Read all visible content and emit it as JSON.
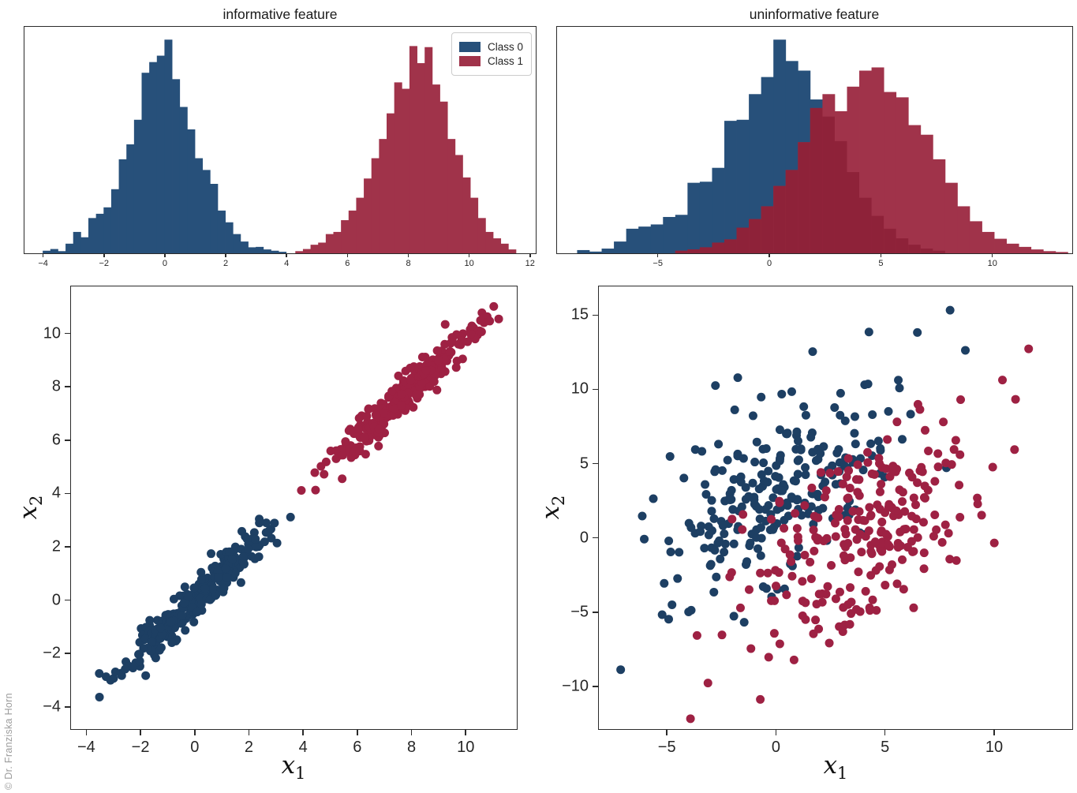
{
  "watermark": "© Dr. Franziska Horn",
  "colors": {
    "class0": "#27507a",
    "class1": "#a0334a",
    "class0_scatter": "#1d3f63",
    "class1_scatter": "#9e2143",
    "hist_overlap": "#8e2239",
    "axis": "#2b2b2b",
    "watermark_gray": "#9c9c9c"
  },
  "chart_data": [
    {
      "type": "bar",
      "subtype": "histogram",
      "title": "informative feature",
      "xlim": [
        -4.6,
        12.2
      ],
      "ylim": [
        0,
        1.06
      ],
      "xticks": [
        -4,
        -2,
        0,
        2,
        4,
        6,
        8,
        10,
        12
      ],
      "yticks": [],
      "grid": false,
      "legend": [
        {
          "label": "Class 0",
          "color": "#27507a"
        },
        {
          "label": "Class 1",
          "color": "#a0334a"
        }
      ],
      "legend_position": "upper right",
      "series": [
        {
          "name": "Class 0",
          "color": "#27507a",
          "bin_start": -4.0,
          "bin_width": 0.25,
          "heights": [
            0.012,
            0.02,
            0.01,
            0.045,
            0.1,
            0.075,
            0.165,
            0.185,
            0.215,
            0.3,
            0.44,
            0.51,
            0.625,
            0.845,
            0.895,
            0.925,
            1.0,
            0.815,
            0.685,
            0.58,
            0.445,
            0.39,
            0.325,
            0.2,
            0.145,
            0.09,
            0.055,
            0.028,
            0.03,
            0.018,
            0.012,
            0.007
          ]
        },
        {
          "name": "Class 1",
          "color": "#a0334a",
          "bin_start": 4.3,
          "bin_width": 0.25,
          "heights": [
            0.01,
            0.02,
            0.04,
            0.05,
            0.09,
            0.1,
            0.155,
            0.2,
            0.26,
            0.35,
            0.445,
            0.535,
            0.655,
            0.8,
            0.77,
            0.97,
            0.89,
            0.965,
            0.79,
            0.71,
            0.535,
            0.46,
            0.355,
            0.26,
            0.165,
            0.1,
            0.07,
            0.045,
            0.018
          ]
        }
      ]
    },
    {
      "type": "bar",
      "subtype": "histogram",
      "title": "uninformative feature",
      "xlim": [
        -9.5,
        13.6
      ],
      "ylim": [
        0,
        1.06
      ],
      "xticks": [
        -5,
        0,
        5,
        10
      ],
      "yticks": [],
      "grid": false,
      "overlap_color": "#8e2239",
      "series": [
        {
          "name": "Class 0",
          "color": "#27507a",
          "bin_start": -8.6,
          "bin_width": 0.55,
          "heights": [
            0.015,
            0.008,
            0.022,
            0.055,
            0.115,
            0.125,
            0.135,
            0.17,
            0.18,
            0.33,
            0.335,
            0.4,
            0.62,
            0.625,
            0.745,
            0.825,
            1.0,
            0.9,
            0.855,
            0.72,
            0.64,
            0.525,
            0.38,
            0.26,
            0.175,
            0.115,
            0.07,
            0.04,
            0.022,
            0.012
          ]
        },
        {
          "name": "Class 1",
          "color": "#a0334a",
          "bin_start": -4.2,
          "bin_width": 0.55,
          "heights": [
            0.012,
            0.018,
            0.028,
            0.05,
            0.065,
            0.12,
            0.16,
            0.22,
            0.315,
            0.39,
            0.52,
            0.68,
            0.745,
            0.665,
            0.78,
            0.855,
            0.87,
            0.755,
            0.73,
            0.6,
            0.555,
            0.44,
            0.33,
            0.22,
            0.15,
            0.1,
            0.068,
            0.045,
            0.03,
            0.018,
            0.01,
            0.006
          ]
        }
      ]
    },
    {
      "type": "scatter",
      "title": "",
      "xlabel": {
        "base": "x",
        "sub": "1"
      },
      "ylabel": {
        "base": "x",
        "sub": "2"
      },
      "xlim": [
        -4.55,
        11.9
      ],
      "ylim": [
        -4.85,
        11.75
      ],
      "xticks": [
        -4,
        -2,
        0,
        2,
        4,
        6,
        8,
        10
      ],
      "yticks": [
        -4,
        -2,
        0,
        2,
        4,
        6,
        8,
        10
      ],
      "grid": false,
      "marker_radius": 5.5,
      "clusters": [
        {
          "name": "Class 0",
          "color": "#1d3f63",
          "n": 280,
          "mean": [
            0.1,
            0.05
          ],
          "std": [
            1.35,
            1.35
          ],
          "corr": 0.96,
          "clip": [
            -3.65,
            3.65,
            -3.8,
            3.25
          ],
          "seed": 11,
          "extra": [
            [
              -3.5,
              -3.65
            ],
            [
              -2.55,
              -2.6
            ],
            [
              3.55,
              3.1
            ]
          ]
        },
        {
          "name": "Class 1",
          "color": "#9e2143",
          "n": 280,
          "mean": [
            7.55,
            7.45
          ],
          "std": [
            1.35,
            1.35
          ],
          "corr": 0.96,
          "clip": [
            3.85,
            11.3,
            4.0,
            11.2
          ],
          "seed": 23,
          "extra": [
            [
              11.05,
              11.0
            ],
            [
              3.95,
              4.1
            ],
            [
              10.6,
              10.05
            ],
            [
              10.9,
              10.45
            ]
          ]
        }
      ]
    },
    {
      "type": "scatter",
      "title": "",
      "xlabel": {
        "base": "x",
        "sub": "1"
      },
      "ylabel": {
        "base": "x",
        "sub": "2"
      },
      "xlim": [
        -8.1,
        13.6
      ],
      "ylim": [
        -12.9,
        16.9
      ],
      "xticks": [
        -5,
        0,
        5,
        10
      ],
      "yticks": [
        -10,
        -5,
        0,
        5,
        10,
        15
      ],
      "grid": false,
      "marker_radius": 5.5,
      "clusters": [
        {
          "name": "Class 0",
          "color": "#1d3f63",
          "n": 245,
          "mean": [
            0.3,
            3.3
          ],
          "std": [
            2.6,
            3.3
          ],
          "corr": 0.5,
          "clip": [
            -6.2,
            8.3,
            -6.0,
            14.2
          ],
          "seed": 37,
          "extra": [
            [
              -7.1,
              -8.9
            ],
            [
              8.0,
              15.3
            ],
            [
              6.5,
              13.8
            ],
            [
              8.7,
              12.6
            ],
            [
              -5.2,
              -5.2
            ],
            [
              -4.9,
              -5.5
            ]
          ]
        },
        {
          "name": "Class 1",
          "color": "#9e2143",
          "n": 245,
          "mean": [
            3.8,
            0.2
          ],
          "std": [
            2.7,
            3.5
          ],
          "corr": 0.5,
          "clip": [
            -2.5,
            11.0,
            -9.0,
            9.5
          ],
          "seed": 53,
          "extra": [
            [
              -3.9,
              -12.2
            ],
            [
              -0.7,
              -10.9
            ],
            [
              11.6,
              12.7
            ],
            [
              10.4,
              10.6
            ],
            [
              -3.1,
              -9.8
            ],
            [
              -3.6,
              -6.6
            ],
            [
              11.0,
              9.3
            ]
          ]
        }
      ]
    }
  ]
}
